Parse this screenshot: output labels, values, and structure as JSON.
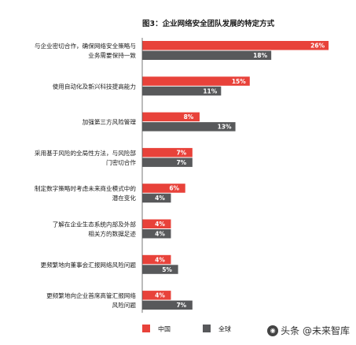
{
  "chart_data": {
    "type": "bar",
    "orientation": "horizontal",
    "title": "图3：企业网络安全团队发展的特定方式",
    "xlabel": "",
    "ylabel": "",
    "categories": [
      [
        "与企业密切合作，确保网络安全策略与",
        "业务需要保持一致"
      ],
      [
        "使用自动化及新兴科技提高能力"
      ],
      [
        "加强第三方风险管理"
      ],
      [
        "采用基于风险的全局性方法，与风险部",
        "门密切合作"
      ],
      [
        "制定数字策略时考虑未来商业模式中的",
        "潜在变化"
      ],
      [
        "了解在企业生态系统内部及外部",
        "相关方的数据足迹"
      ],
      [
        "更频繁地向董事会汇报网络风险问题"
      ],
      [
        "更频繁地向企业首席高管汇报网络",
        "风险问题"
      ]
    ],
    "series": [
      {
        "name": "中国",
        "color": "#e8423a",
        "values": [
          26,
          15,
          8,
          7,
          6,
          4,
          4,
          4
        ],
        "labels": [
          "26%",
          "15%",
          "8%",
          "7%",
          "6%",
          "4%",
          "4%",
          "4%"
        ]
      },
      {
        "name": "全球",
        "color": "#58595b",
        "values": [
          18,
          11,
          13,
          7,
          4,
          4,
          5,
          7
        ],
        "labels": [
          "18%",
          "11%",
          "13%",
          "7%",
          "4%",
          "4%",
          "5%",
          "7%"
        ]
      }
    ],
    "legend": "bottom",
    "grid": false
  },
  "watermark": {
    "text": "头条 @未来智库",
    "icon": "toutiao-icon"
  }
}
